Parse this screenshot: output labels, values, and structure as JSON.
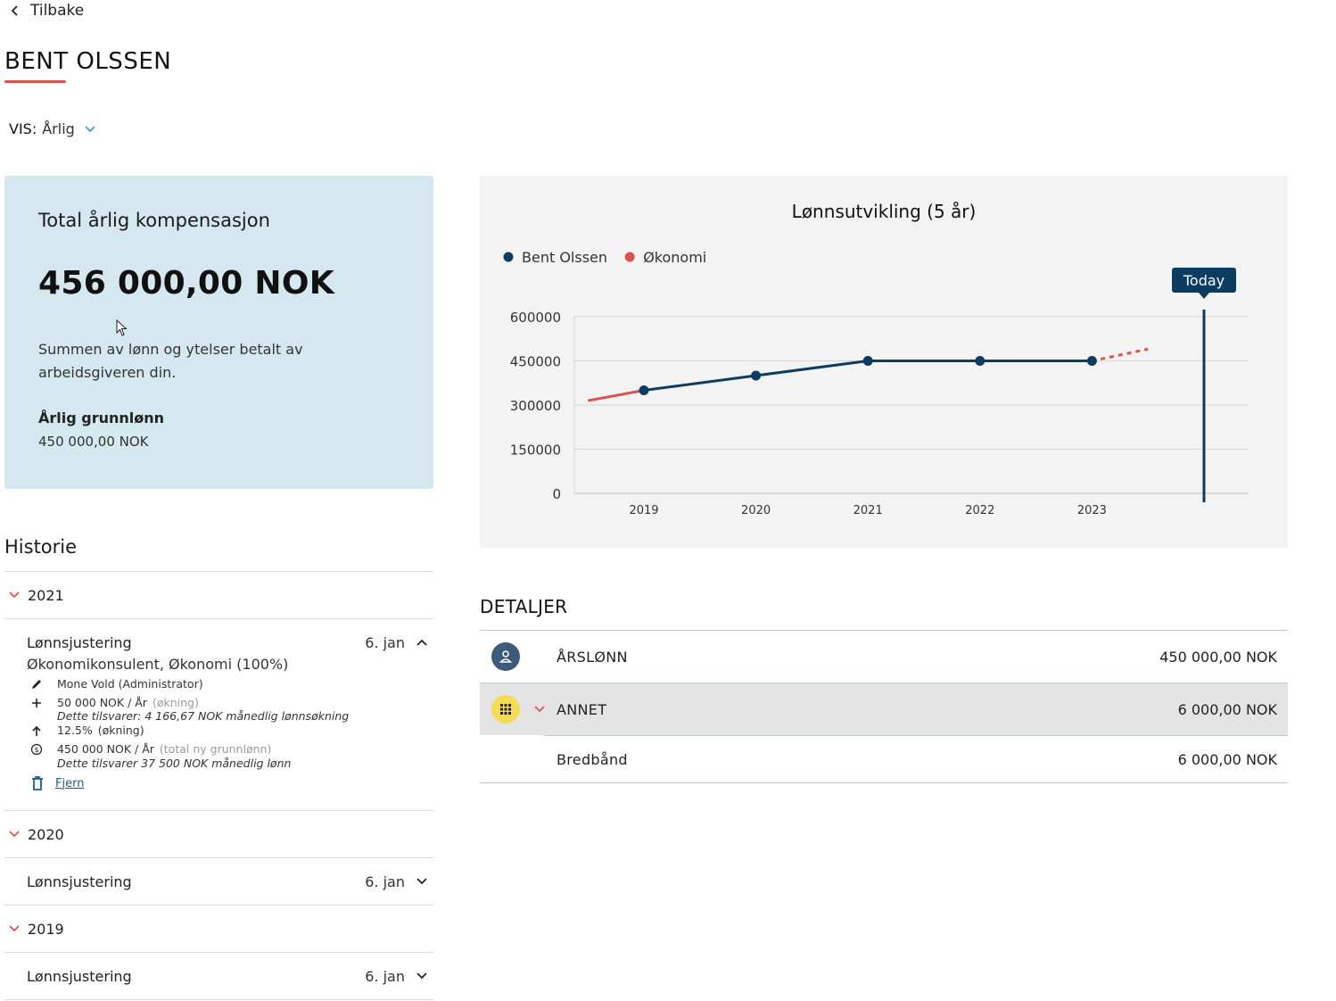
{
  "nav": {
    "back_label": "Tilbake"
  },
  "page": {
    "title": "BENT OLSSEN"
  },
  "view": {
    "label": "VIS:",
    "value": "Årlig"
  },
  "compensation": {
    "title": "Total årlig kompensasjon",
    "amount": "456 000,00 NOK",
    "description": "Summen av lønn og ytelser betalt av arbeidsgiveren din.",
    "base_label": "Årlig grunnlønn",
    "base_value": "450 000,00 NOK"
  },
  "history": {
    "title": "Historie",
    "years": [
      {
        "year": "2021",
        "expanded": true,
        "item": {
          "label": "Lønnsjustering",
          "date": "6. jan",
          "role": "Økonomikonsulent, Økonomi (100%)",
          "author": "Mone Vold (Administrator)",
          "increase": "50 000 NOK / År",
          "increase_tag": "(økning)",
          "increase_note": "Dette tilsvarer: 4 166,67 NOK månedlig lønnsøkning",
          "percent": "12.5%",
          "percent_tag": "(økning)",
          "total": "450 000 NOK / År",
          "total_tag": "(total ny grunnlønn)",
          "total_note": "Dette tilsvarer 37 500 NOK månedlig lønn",
          "remove_label": "Fjern"
        }
      },
      {
        "year": "2020",
        "expanded": false,
        "item": {
          "label": "Lønnsjustering",
          "date": "6. jan"
        }
      },
      {
        "year": "2019",
        "expanded": false,
        "item": {
          "label": "Lønnsjustering",
          "date": "6. jan"
        }
      }
    ]
  },
  "chart_data": {
    "type": "line",
    "title": "Lønnsutvikling (5 år)",
    "legend": [
      "Bent Olssen",
      "Økonomi"
    ],
    "legend_position": "top-left",
    "categories": [
      "2019",
      "2020",
      "2021",
      "2022",
      "2023"
    ],
    "y_ticks": [
      "600000",
      "450000",
      "300000",
      "150000",
      "0"
    ],
    "ylim": [
      0,
      600000
    ],
    "grid": true,
    "series": [
      {
        "name": "Bent Olssen",
        "color": "#0d3c61",
        "x": [
          2019,
          2020,
          2021,
          2022,
          2023
        ],
        "values": [
          350000,
          400000,
          450000,
          450000,
          450000
        ]
      },
      {
        "name": "Økonomi",
        "color": "#d9534f",
        "segments": [
          {
            "x": [
              2018.5,
              2019
            ],
            "values": [
              315000,
              350000
            ]
          },
          {
            "x": [
              2023,
              2023.5
            ],
            "values": [
              450000,
              490000
            ],
            "dashed": true
          }
        ]
      }
    ],
    "marker": {
      "label": "Today",
      "x": 2024
    }
  },
  "details": {
    "title": "DETALJER",
    "rows": [
      {
        "label": "ÅRSLØNN",
        "value": "450 000,00 NOK",
        "icon": "person-icon"
      },
      {
        "label": "ANNET",
        "value": "6 000,00 NOK",
        "icon": "grid-icon"
      },
      {
        "label": "Bredbånd",
        "value": "6 000,00 NOK"
      }
    ]
  },
  "colors": {
    "accent": "#d9534f",
    "primary": "#0d3c61",
    "card": "#d5e8ef",
    "annet_icon": "#f4dc58"
  }
}
